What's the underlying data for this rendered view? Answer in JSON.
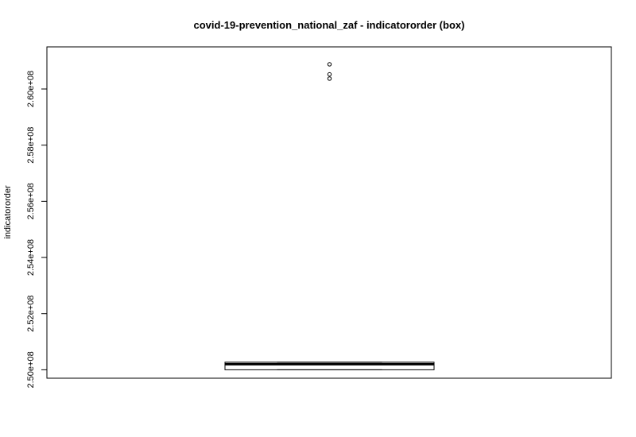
{
  "chart_data": {
    "type": "box",
    "title": "covid-19-prevention_national_zaf - indicatororder (box)",
    "xlabel": "",
    "ylabel": "indicatororder",
    "ylim": [
      249700000,
      261500000
    ],
    "yticks": [
      250000000,
      252000000,
      254000000,
      256000000,
      258000000,
      260000000
    ],
    "ytick_labels": [
      "2.50e+08",
      "2.52e+08",
      "2.54e+08",
      "2.56e+08",
      "2.58e+08",
      "2.60e+08"
    ],
    "box": {
      "min": 250000000,
      "q1": 250000000,
      "median": 250200000,
      "q3": 250270000,
      "max": 250270000
    },
    "outliers": [
      260370000,
      260520000,
      260880000
    ]
  }
}
